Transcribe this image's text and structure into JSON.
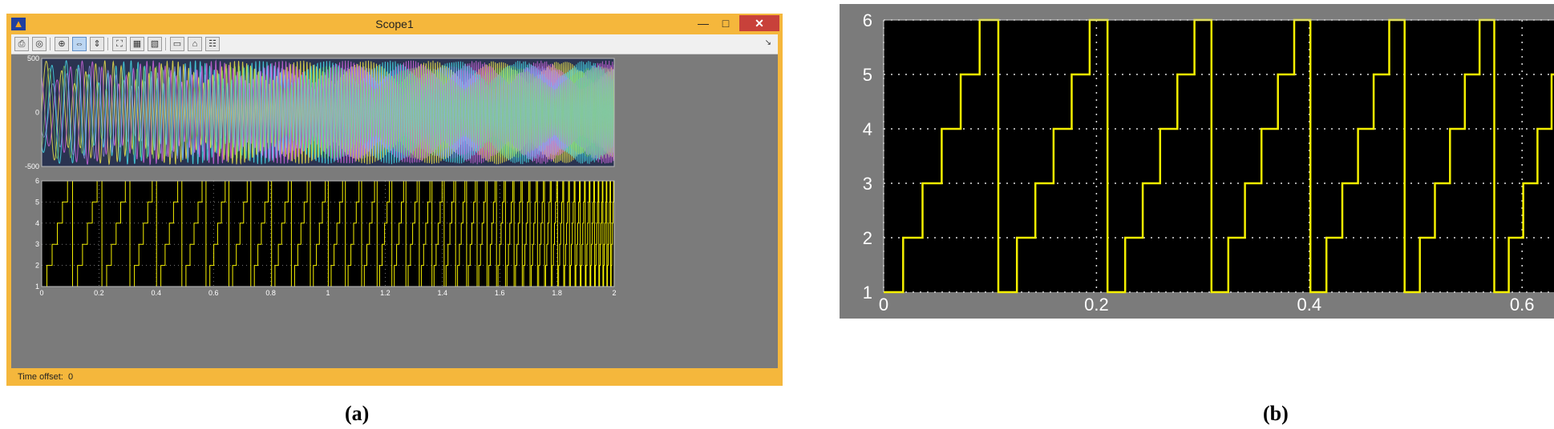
{
  "window": {
    "title": "Scope1",
    "min_label": "—",
    "max_label": "□",
    "close_label": "✕",
    "toolbar": {
      "items": [
        {
          "name": "print-icon",
          "glyph": "⎙"
        },
        {
          "name": "parameters-icon",
          "glyph": "◎"
        },
        {
          "name": "zoom-in-icon",
          "glyph": "⊕"
        },
        {
          "name": "zoom-x-icon",
          "glyph": "⇔"
        },
        {
          "name": "zoom-y-icon",
          "glyph": "⇕"
        },
        {
          "name": "autoscale-icon",
          "glyph": "⛶"
        },
        {
          "name": "save-axes-icon",
          "glyph": "▦"
        },
        {
          "name": "restore-axes-icon",
          "glyph": "▧"
        },
        {
          "name": "floating-scope-icon",
          "glyph": "▭"
        },
        {
          "name": "lock-icon",
          "glyph": "⌂"
        },
        {
          "name": "signal-selection-icon",
          "glyph": "☷"
        }
      ],
      "menu_arrow": "↘"
    },
    "status_label": "Time offset:",
    "status_value": "0"
  },
  "chart_data": [
    {
      "type": "line",
      "panel": "a-top",
      "description_series": "three-phase sinusoidal signals with varying envelope",
      "ylim": [
        -500,
        500
      ],
      "xlim": [
        0,
        2
      ],
      "yticks": [
        "500",
        "0",
        "-500"
      ],
      "ytick_values": [
        500,
        0,
        -500
      ],
      "series_colors": [
        "#e2d94a",
        "#c462d6",
        "#44d0e0",
        "#9c9fff",
        "#88dd5a",
        "#ffffff"
      ],
      "grid": true
    },
    {
      "type": "line",
      "panel": "a-bottom",
      "ylim": [
        1,
        6
      ],
      "xlim": [
        0,
        2
      ],
      "yticks": [
        "6",
        "5",
        "4",
        "3",
        "2",
        "1"
      ],
      "ytick_values": [
        6,
        5,
        4,
        3,
        2,
        1
      ],
      "xticks": [
        "0",
        "0.2",
        "0.4",
        "0.6",
        "0.8",
        "1",
        "1.2",
        "1.4",
        "1.6",
        "1.8",
        "2"
      ],
      "xtick_values": [
        0,
        0.2,
        0.4,
        0.6,
        0.8,
        1,
        1.2,
        1.4,
        1.6,
        1.8,
        2
      ],
      "series": [
        {
          "color": "#f5f000",
          "period_start": 0.11,
          "period_end": 0.012,
          "levels": [
            1,
            2,
            3,
            4,
            5,
            6
          ]
        }
      ],
      "grid": true
    },
    {
      "type": "line",
      "panel": "b",
      "ylim": [
        1,
        6
      ],
      "xlim": [
        0,
        0.63
      ],
      "yticks": [
        "6",
        "5",
        "4",
        "3",
        "2",
        "1"
      ],
      "ytick_values": [
        6,
        5,
        4,
        3,
        2,
        1
      ],
      "xticks": [
        "0",
        "0.2",
        "0.4",
        "0.6"
      ],
      "xtick_values": [
        0,
        0.2,
        0.4,
        0.6
      ],
      "series": [
        {
          "color": "#f5f000",
          "period_start": 0.11,
          "period_end": 0.012,
          "levels": [
            1,
            2,
            3,
            4,
            5,
            6
          ]
        }
      ],
      "grid": true
    }
  ],
  "captions": {
    "a": "(a)",
    "b": "(b)"
  }
}
